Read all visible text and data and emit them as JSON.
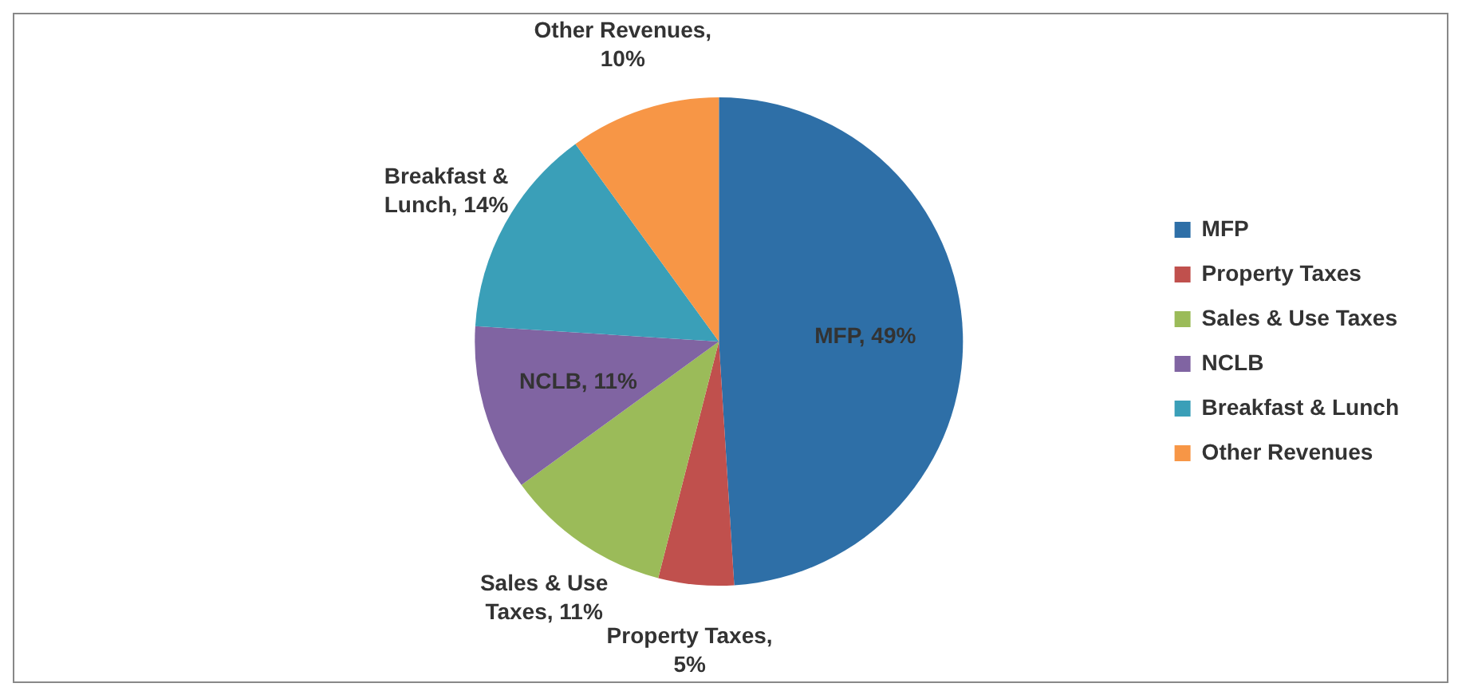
{
  "chart_data": {
    "type": "pie",
    "categories": [
      "MFP",
      "Property Taxes",
      "Sales & Use Taxes",
      "NCLB",
      "Breakfast & Lunch",
      "Other Revenues"
    ],
    "values": [
      49,
      5,
      11,
      11,
      14,
      10
    ],
    "colors": [
      "#2e6fa7",
      "#c0504d",
      "#9bbb59",
      "#8064a2",
      "#3a9fb8",
      "#f79646"
    ],
    "value_labels": [
      "MFP, 49%",
      "Property Taxes, 5%",
      "Sales & Use Taxes, 11%",
      "NCLB, 11%",
      "Breakfast & Lunch, 14%",
      "Other Revenues, 10%"
    ],
    "legend": "right"
  }
}
